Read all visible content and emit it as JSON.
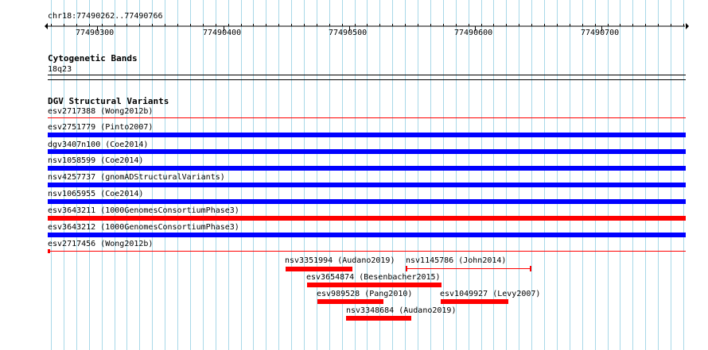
{
  "colors": {
    "grid": "#a8d8e8",
    "blue": "#0000ff",
    "red": "#ff0000"
  },
  "ruler": {
    "position_label": "chr18:77490262..77490766",
    "ticks": [
      "77490300",
      "77490400",
      "77490500",
      "77490600",
      "77490700"
    ]
  },
  "cytogenetic": {
    "title": "Cytogenetic Bands",
    "band": "18q23"
  },
  "dgv": {
    "title": "DGV Structural Variants",
    "full_rows": [
      {
        "label": "esv2717388 (Wong2012b)",
        "color": "red",
        "style": "line"
      },
      {
        "label": "esv2751779 (Pinto2007)",
        "color": "blue",
        "style": "bar"
      },
      {
        "label": "dgv3407n100 (Coe2014)",
        "color": "blue",
        "style": "bar"
      },
      {
        "label": "nsv1058599 (Coe2014)",
        "color": "blue",
        "style": "bar"
      },
      {
        "label": "nsv4257737 (gnomADStructuralVariants)",
        "color": "blue",
        "style": "bar"
      },
      {
        "label": "nsv1065955 (Coe2014)",
        "color": "blue",
        "style": "bar"
      },
      {
        "label": "esv3643211 (1000GenomesConsortiumPhase3)",
        "color": "red",
        "style": "bar"
      },
      {
        "label": "esv3643212 (1000GenomesConsortiumPhase3)",
        "color": "blue",
        "style": "bar"
      },
      {
        "label": "esv2717456 (Wong2012b)",
        "color": "red",
        "style": "line"
      }
    ],
    "features": [
      {
        "label": "nsv3351994 (Audano2019)",
        "style": "bar"
      },
      {
        "label": "nsv1145786 (John2014)",
        "style": "line"
      },
      {
        "label": "esv3654874 (Besenbacher2015)",
        "style": "bar"
      },
      {
        "label": "esv989528 (Pang2010)",
        "style": "bar"
      },
      {
        "label": "esv1049927 (Levy2007)",
        "style": "bar"
      },
      {
        "label": "nsv3348684 (Audano2019)",
        "style": "bar"
      }
    ]
  }
}
